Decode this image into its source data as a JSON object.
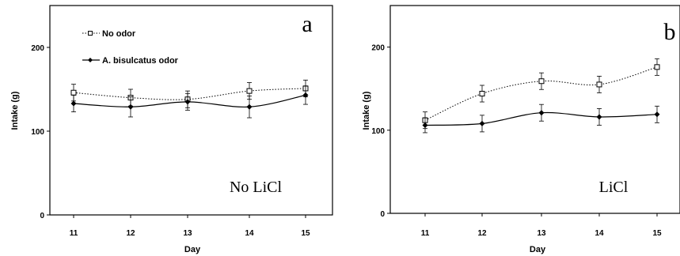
{
  "chart_data": [
    {
      "type": "line",
      "panel_label": "a",
      "condition_label": "No LiCl",
      "xlabel": "Day",
      "ylabel": "Intake (g)",
      "x": [
        11,
        12,
        13,
        14,
        15
      ],
      "x_ticks": [
        "11",
        "12",
        "13",
        "14",
        "15"
      ],
      "y_ticks": [
        "0",
        "100",
        "200"
      ],
      "ylim": [
        0,
        250
      ],
      "grid": false,
      "legend_position": "top-left",
      "series": [
        {
          "name": "No odor",
          "style": "dotted",
          "marker": "open-square",
          "values": [
            146,
            140,
            138,
            148,
            151
          ],
          "errors": [
            10,
            10,
            10,
            10,
            10
          ]
        },
        {
          "name": "A. bisulcatus odor",
          "style": "solid",
          "marker": "filled-diamond",
          "values": [
            133,
            129,
            135,
            129,
            143
          ],
          "errors": [
            10,
            12,
            10,
            13,
            11
          ]
        }
      ]
    },
    {
      "type": "line",
      "panel_label": "b",
      "condition_label": "LiCl",
      "xlabel": "Day",
      "ylabel": "Intake (g)",
      "x": [
        11,
        12,
        13,
        14,
        15
      ],
      "x_ticks": [
        "11",
        "12",
        "13",
        "14",
        "15"
      ],
      "y_ticks": [
        "0",
        "100",
        "200"
      ],
      "ylim": [
        0,
        250
      ],
      "grid": false,
      "series": [
        {
          "name": "No odor",
          "style": "dotted",
          "marker": "open-square",
          "values": [
            112,
            144,
            159,
            155,
            176
          ],
          "errors": [
            10,
            10,
            10,
            10,
            10
          ]
        },
        {
          "name": "A. bisulcatus odor",
          "style": "solid",
          "marker": "filled-diamond",
          "values": [
            106,
            108,
            121,
            116,
            119
          ],
          "errors": [
            9,
            10,
            10,
            10,
            10
          ]
        }
      ]
    }
  ]
}
